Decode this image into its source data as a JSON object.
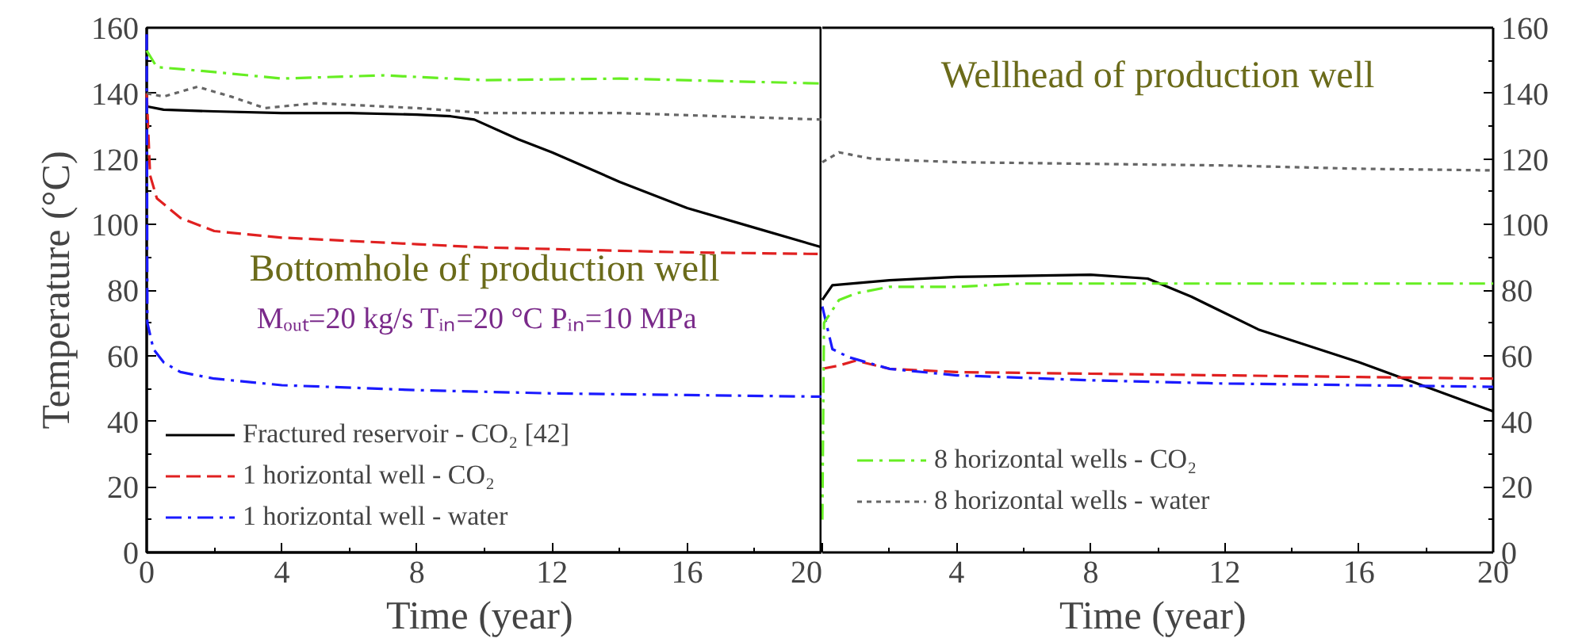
{
  "chart_data": [
    {
      "type": "line",
      "xlabel": "Time  (year)",
      "ylabel": "Temperature (°C)",
      "xlim": [
        0,
        20
      ],
      "ylim": [
        0,
        160
      ],
      "xticks": [
        0,
        4,
        8,
        12,
        16,
        20
      ],
      "yticks": [
        0,
        20,
        40,
        60,
        80,
        100,
        120,
        140,
        160
      ],
      "grid": false,
      "legend": "bottom left",
      "annotations": [
        "Bottomhole of production well",
        "Mₒᵤₜ=20 kg/s  Tᵢₙ=20 °C  Pᵢₙ=10 MPa"
      ],
      "series": [
        {
          "name": "Fractured reservoir - CO₂ [42]",
          "color": "#000000",
          "line_style": "solid",
          "x": [
            0,
            0.5,
            2,
            4,
            6,
            8,
            9,
            9.7,
            11,
            12,
            14,
            16,
            18,
            20
          ],
          "values": [
            136,
            135,
            134.5,
            134,
            134,
            133.5,
            133,
            132,
            126,
            122,
            113,
            105,
            99,
            93
          ]
        },
        {
          "name": "1 horizontal well - CO₂",
          "color": "#e02020",
          "line_style": "dashed",
          "x": [
            0,
            0.1,
            0.3,
            1,
            2,
            4,
            6,
            8,
            10,
            12,
            16,
            20
          ],
          "values": [
            140,
            115,
            108,
            102,
            98,
            96,
            95,
            94,
            93,
            92.5,
            91.5,
            91
          ]
        },
        {
          "name": "1 horizontal well - water",
          "color": "#1a1aff",
          "line_style": "dashdot",
          "x": [
            0,
            0.02,
            0.2,
            0.5,
            1,
            2,
            4,
            8,
            12,
            16,
            20
          ],
          "values": [
            158,
            70,
            62,
            58,
            55,
            53,
            51,
            49.5,
            48.5,
            48,
            47.5
          ]
        },
        {
          "color": "#66ee22",
          "line_style": "dashdot",
          "x": [
            0,
            0.3,
            2,
            4,
            7,
            10,
            14,
            20
          ],
          "values": [
            153,
            148,
            146.5,
            144.5,
            145.5,
            144,
            144.5,
            143
          ]
        },
        {
          "color": "#666666",
          "line_style": "dotted",
          "x": [
            0,
            0.5,
            1.5,
            2.5,
            3.5,
            5,
            8,
            10,
            14,
            20
          ],
          "values": [
            140,
            139,
            142,
            139,
            135.5,
            137,
            135.5,
            134,
            134,
            132
          ]
        }
      ]
    },
    {
      "type": "line",
      "xlabel": "Time  (year)",
      "xlim": [
        0,
        20
      ],
      "ylim": [
        0,
        160
      ],
      "xticks": [
        {
          "value": 0,
          "label": null
        },
        4,
        8,
        12,
        16,
        20
      ],
      "yticks": [
        0,
        20,
        40,
        60,
        80,
        100,
        120,
        140,
        160
      ],
      "grid": false,
      "legend": "bottom left",
      "annotations": [
        "Wellhead of production well"
      ],
      "series": [
        {
          "color": "#000000",
          "line_style": "solid",
          "x": [
            0,
            0.3,
            2,
            4,
            8,
            9.7,
            11,
            13,
            16,
            18,
            20
          ],
          "values": [
            77,
            81.5,
            83,
            84,
            84.7,
            83.5,
            78,
            68,
            58,
            50.5,
            43
          ]
        },
        {
          "color": "#e02020",
          "line_style": "dashed",
          "x": [
            0,
            0.5,
            1,
            2,
            4,
            8,
            12,
            16,
            20
          ],
          "values": [
            56,
            57,
            58.5,
            56,
            55,
            54.5,
            54,
            53.5,
            53
          ]
        },
        {
          "color": "#1a1aff",
          "line_style": "dashdot",
          "x": [
            0,
            0.3,
            0.8,
            2,
            4,
            8,
            12,
            16,
            20
          ],
          "values": [
            75,
            62,
            59.5,
            56,
            54,
            52.5,
            51.5,
            51,
            50.5
          ]
        },
        {
          "name": "8 horizontal wells - CO₂",
          "color": "#66ee22",
          "line_style": "dashdot",
          "x": [
            0,
            0.05,
            0.5,
            1,
            2,
            4,
            6,
            10,
            14,
            20
          ],
          "values": [
            10,
            70,
            77,
            79,
            81,
            81,
            82,
            82,
            82,
            82
          ]
        },
        {
          "name": "8 horizontal wells - water",
          "color": "#666666",
          "line_style": "dotted",
          "x": [
            0,
            0.5,
            1.5,
            4,
            8,
            12,
            16,
            20
          ],
          "values": [
            119,
            122,
            120,
            119,
            118.5,
            118,
            117,
            116.5
          ]
        }
      ]
    }
  ]
}
